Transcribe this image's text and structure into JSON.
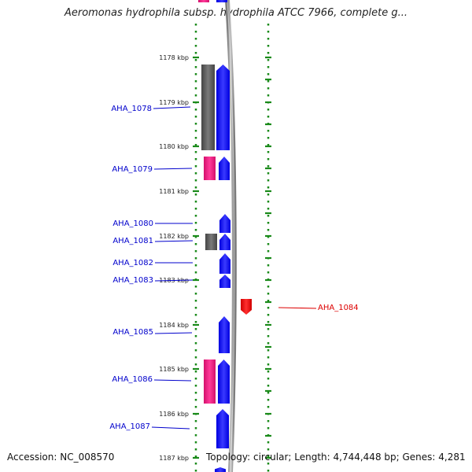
{
  "title": "Aeromonas hydrophila subsp. hydrophila ATCC 7966, complete g...",
  "footer": {
    "accession": "Accession: NC_008570",
    "summary": "Topology: circular; Length: 4,744,448 bp; Genes: 4,281"
  },
  "colors": {
    "forward": "#1a1aff",
    "reverse": "#4d4d4d",
    "rna": "#e8177e",
    "highlight": "#ff1111",
    "label": "#0000cc",
    "highlight_label": "#dd0000",
    "ruler": "#1a8a1a",
    "backbone": "#8a8a8a"
  },
  "ruler": {
    "unit": "kbp",
    "ticks": [
      "1178 kbp",
      "1179 kbp",
      "1180 kbp",
      "1181 kbp",
      "1182 kbp",
      "1183 kbp",
      "1184 kbp",
      "1185 kbp",
      "1186 kbp",
      "1187 kbp"
    ]
  },
  "genes": [
    {
      "label": "AHA_1078"
    },
    {
      "label": "AHA_1079"
    },
    {
      "label": "AHA_1080"
    },
    {
      "label": "AHA_1081"
    },
    {
      "label": "AHA_1082"
    },
    {
      "label": "AHA_1083"
    },
    {
      "label": "AHA_1084"
    },
    {
      "label": "AHA_1085"
    },
    {
      "label": "AHA_1086"
    },
    {
      "label": "AHA_1087"
    }
  ]
}
